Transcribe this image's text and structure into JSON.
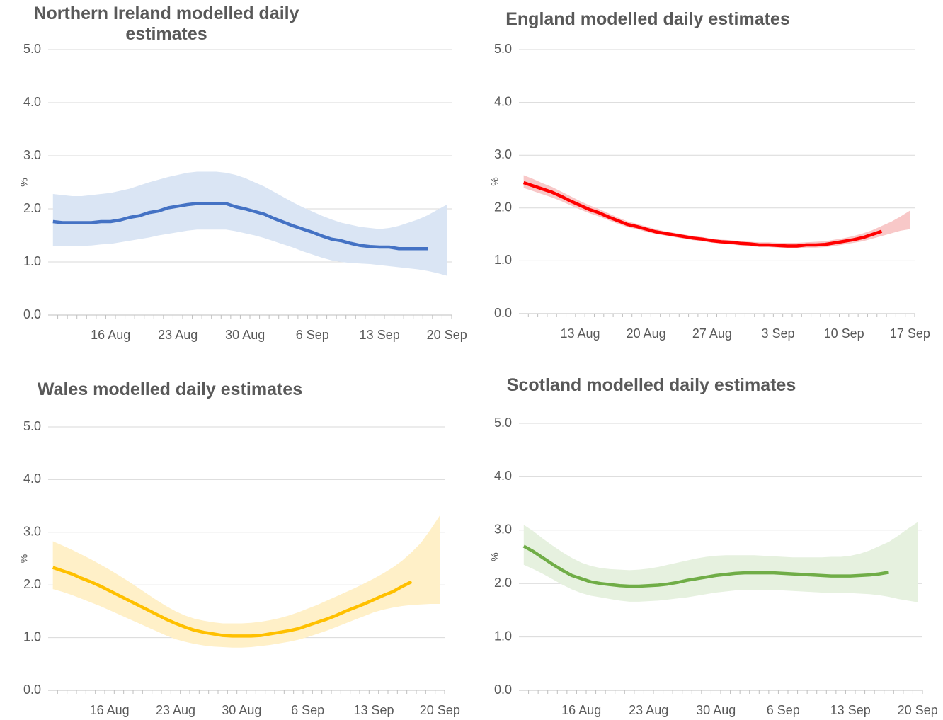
{
  "chart_data": [
    {
      "type": "line",
      "title": "Northern Ireland modelled daily estimates",
      "y_label": "%",
      "categories": [
        null,
        null,
        null,
        null,
        null,
        null,
        "16 Aug",
        null,
        null,
        null,
        null,
        null,
        null,
        "23 Aug",
        null,
        null,
        null,
        null,
        null,
        null,
        "30 Aug",
        null,
        null,
        null,
        null,
        null,
        null,
        "6 Sep",
        null,
        null,
        null,
        null,
        null,
        null,
        "13 Sep",
        null,
        null,
        null,
        null,
        null,
        null,
        "20 Sep"
      ],
      "values": [
        1.76,
        1.74,
        1.74,
        1.74,
        1.74,
        1.76,
        1.76,
        1.79,
        1.84,
        1.87,
        1.93,
        1.96,
        2.02,
        2.05,
        2.08,
        2.1,
        2.1,
        2.1,
        2.1,
        2.04,
        2.0,
        1.95,
        1.9,
        1.82,
        1.75,
        1.68,
        1.62,
        1.56,
        1.49,
        1.43,
        1.4,
        1.35,
        1.31,
        1.29,
        1.28,
        1.28,
        1.25,
        1.25,
        1.25,
        1.25,
        null,
        null
      ],
      "upper": [
        2.28,
        2.26,
        2.24,
        2.24,
        2.26,
        2.28,
        2.3,
        2.34,
        2.38,
        2.44,
        2.5,
        2.55,
        2.6,
        2.64,
        2.68,
        2.7,
        2.7,
        2.7,
        2.68,
        2.64,
        2.58,
        2.5,
        2.42,
        2.32,
        2.22,
        2.12,
        2.03,
        1.95,
        1.87,
        1.8,
        1.74,
        1.7,
        1.66,
        1.64,
        1.62,
        1.64,
        1.68,
        1.74,
        1.8,
        1.88,
        1.98,
        2.08
      ],
      "lower": [
        1.3,
        1.3,
        1.3,
        1.3,
        1.31,
        1.33,
        1.34,
        1.37,
        1.4,
        1.43,
        1.46,
        1.5,
        1.53,
        1.56,
        1.59,
        1.61,
        1.61,
        1.61,
        1.61,
        1.58,
        1.54,
        1.5,
        1.45,
        1.39,
        1.33,
        1.27,
        1.2,
        1.14,
        1.08,
        1.03,
        1.0,
        0.98,
        0.97,
        0.96,
        0.94,
        0.92,
        0.9,
        0.88,
        0.86,
        0.83,
        0.79,
        0.74
      ],
      "line_color": "#4472c4",
      "band_color": "#dae5f4",
      "ylim": [
        0,
        5
      ],
      "yticks": [
        {
          "value": 0,
          "label": "0.0"
        },
        {
          "value": 1,
          "label": "1.0"
        },
        {
          "value": 2,
          "label": "2.0"
        },
        {
          "value": 3,
          "label": "3.0"
        },
        {
          "value": 4,
          "label": "4.0"
        },
        {
          "value": 5,
          "label": "5.0"
        }
      ],
      "grid": true
    },
    {
      "type": "line",
      "title": "England modelled daily estimates",
      "y_label": "%",
      "categories": [
        null,
        null,
        null,
        null,
        null,
        null,
        "13 Aug",
        null,
        null,
        null,
        null,
        null,
        null,
        "20 Aug",
        null,
        null,
        null,
        null,
        null,
        null,
        "27 Aug",
        null,
        null,
        null,
        null,
        null,
        null,
        "3 Sep",
        null,
        null,
        null,
        null,
        null,
        null,
        "10 Sep",
        null,
        null,
        null,
        null,
        null,
        null,
        "17 Sep"
      ],
      "values": [
        2.48,
        2.42,
        2.36,
        2.3,
        2.22,
        2.13,
        2.05,
        1.97,
        1.91,
        1.83,
        1.76,
        1.69,
        1.65,
        1.6,
        1.55,
        1.52,
        1.49,
        1.46,
        1.43,
        1.41,
        1.38,
        1.36,
        1.35,
        1.33,
        1.32,
        1.3,
        1.3,
        1.29,
        1.28,
        1.28,
        1.3,
        1.3,
        1.31,
        1.34,
        1.37,
        1.4,
        1.44,
        1.5,
        1.56,
        null,
        null,
        null
      ],
      "upper": [
        2.62,
        2.55,
        2.47,
        2.4,
        2.31,
        2.22,
        2.13,
        2.05,
        1.98,
        1.9,
        1.82,
        1.75,
        1.7,
        1.65,
        1.6,
        1.56,
        1.53,
        1.5,
        1.47,
        1.45,
        1.42,
        1.4,
        1.39,
        1.37,
        1.36,
        1.35,
        1.35,
        1.34,
        1.34,
        1.34,
        1.35,
        1.36,
        1.37,
        1.4,
        1.43,
        1.47,
        1.52,
        1.58,
        1.66,
        1.74,
        1.84,
        1.95
      ],
      "lower": [
        2.38,
        2.32,
        2.26,
        2.2,
        2.13,
        2.05,
        1.97,
        1.9,
        1.84,
        1.77,
        1.7,
        1.64,
        1.6,
        1.55,
        1.51,
        1.48,
        1.45,
        1.42,
        1.39,
        1.37,
        1.34,
        1.33,
        1.31,
        1.29,
        1.28,
        1.26,
        1.26,
        1.25,
        1.24,
        1.24,
        1.25,
        1.25,
        1.26,
        1.28,
        1.31,
        1.34,
        1.37,
        1.42,
        1.47,
        1.52,
        1.57,
        1.6
      ],
      "line_color": "#ff0000",
      "band_color": "#f8c8c8",
      "ylim": [
        0,
        5
      ],
      "yticks": [
        {
          "value": 0,
          "label": "0.0"
        },
        {
          "value": 1,
          "label": "1.0"
        },
        {
          "value": 2,
          "label": "2.0"
        },
        {
          "value": 3,
          "label": "3.0"
        },
        {
          "value": 4,
          "label": "4.0"
        },
        {
          "value": 5,
          "label": "5.0"
        }
      ],
      "grid": true
    },
    {
      "type": "line",
      "title": "Wales modelled daily estimates",
      "y_label": "%",
      "categories": [
        null,
        null,
        null,
        null,
        null,
        null,
        "16 Aug",
        null,
        null,
        null,
        null,
        null,
        null,
        "23 Aug",
        null,
        null,
        null,
        null,
        null,
        null,
        "30 Aug",
        null,
        null,
        null,
        null,
        null,
        null,
        "6 Sep",
        null,
        null,
        null,
        null,
        null,
        null,
        "13 Sep",
        null,
        null,
        null,
        null,
        null,
        null,
        "20 Sep"
      ],
      "values": [
        2.33,
        2.27,
        2.21,
        2.13,
        2.06,
        1.98,
        1.89,
        1.8,
        1.71,
        1.62,
        1.53,
        1.44,
        1.35,
        1.27,
        1.2,
        1.14,
        1.1,
        1.07,
        1.04,
        1.03,
        1.03,
        1.03,
        1.04,
        1.07,
        1.1,
        1.13,
        1.17,
        1.23,
        1.29,
        1.35,
        1.42,
        1.5,
        1.57,
        1.64,
        1.72,
        1.8,
        1.87,
        1.97,
        2.06,
        null,
        null,
        null
      ],
      "upper": [
        2.83,
        2.75,
        2.67,
        2.58,
        2.49,
        2.39,
        2.29,
        2.18,
        2.07,
        1.95,
        1.83,
        1.71,
        1.6,
        1.5,
        1.42,
        1.36,
        1.32,
        1.29,
        1.27,
        1.27,
        1.27,
        1.28,
        1.3,
        1.33,
        1.37,
        1.42,
        1.48,
        1.55,
        1.62,
        1.7,
        1.78,
        1.86,
        1.94,
        2.03,
        2.12,
        2.22,
        2.33,
        2.46,
        2.62,
        2.8,
        3.05,
        3.32
      ],
      "lower": [
        1.92,
        1.87,
        1.81,
        1.74,
        1.67,
        1.6,
        1.52,
        1.44,
        1.36,
        1.28,
        1.2,
        1.12,
        1.04,
        0.97,
        0.92,
        0.88,
        0.85,
        0.83,
        0.82,
        0.81,
        0.81,
        0.82,
        0.84,
        0.86,
        0.89,
        0.92,
        0.96,
        1.01,
        1.07,
        1.13,
        1.2,
        1.27,
        1.34,
        1.41,
        1.48,
        1.53,
        1.57,
        1.6,
        1.62,
        1.63,
        1.64,
        1.64
      ],
      "line_color": "#ffc000",
      "band_color": "#fff0c8",
      "ylim": [
        0,
        5
      ],
      "yticks": [
        {
          "value": 0,
          "label": "0.0"
        },
        {
          "value": 1,
          "label": "1.0"
        },
        {
          "value": 2,
          "label": "2.0"
        },
        {
          "value": 3,
          "label": "3.0"
        },
        {
          "value": 4,
          "label": "4.0"
        },
        {
          "value": 5,
          "label": "5.0"
        }
      ],
      "grid": true
    },
    {
      "type": "line",
      "title": "Scotland modelled daily estimates",
      "y_label": "%",
      "categories": [
        null,
        null,
        null,
        null,
        null,
        null,
        "16 Aug",
        null,
        null,
        null,
        null,
        null,
        null,
        "23 Aug",
        null,
        null,
        null,
        null,
        null,
        null,
        "30 Aug",
        null,
        null,
        null,
        null,
        null,
        null,
        "6 Sep",
        null,
        null,
        null,
        null,
        null,
        null,
        "13 Sep",
        null,
        null,
        null,
        null,
        null,
        null,
        "20 Sep"
      ],
      "values": [
        2.7,
        2.6,
        2.48,
        2.36,
        2.25,
        2.15,
        2.09,
        2.03,
        2.0,
        1.98,
        1.96,
        1.95,
        1.95,
        1.96,
        1.97,
        1.99,
        2.02,
        2.06,
        2.09,
        2.12,
        2.15,
        2.17,
        2.19,
        2.2,
        2.2,
        2.2,
        2.2,
        2.19,
        2.18,
        2.17,
        2.16,
        2.15,
        2.14,
        2.14,
        2.14,
        2.15,
        2.16,
        2.18,
        2.21,
        null,
        null,
        null
      ],
      "upper": [
        3.1,
        2.98,
        2.84,
        2.71,
        2.59,
        2.48,
        2.39,
        2.33,
        2.29,
        2.27,
        2.26,
        2.25,
        2.26,
        2.28,
        2.31,
        2.35,
        2.39,
        2.43,
        2.47,
        2.5,
        2.52,
        2.53,
        2.53,
        2.53,
        2.53,
        2.52,
        2.51,
        2.5,
        2.49,
        2.49,
        2.49,
        2.49,
        2.5,
        2.5,
        2.52,
        2.56,
        2.62,
        2.7,
        2.78,
        2.9,
        3.03,
        3.15
      ],
      "lower": [
        2.35,
        2.27,
        2.18,
        2.08,
        1.98,
        1.89,
        1.82,
        1.77,
        1.74,
        1.71,
        1.68,
        1.66,
        1.66,
        1.67,
        1.68,
        1.7,
        1.72,
        1.74,
        1.77,
        1.8,
        1.83,
        1.85,
        1.87,
        1.88,
        1.88,
        1.88,
        1.88,
        1.87,
        1.86,
        1.85,
        1.84,
        1.83,
        1.82,
        1.82,
        1.82,
        1.81,
        1.8,
        1.78,
        1.75,
        1.71,
        1.68,
        1.65
      ],
      "line_color": "#70ad47",
      "band_color": "#e6f1df",
      "ylim": [
        0,
        5
      ],
      "yticks": [
        {
          "value": 0,
          "label": "0.0"
        },
        {
          "value": 1,
          "label": "1.0"
        },
        {
          "value": 2,
          "label": "2.0"
        },
        {
          "value": 3,
          "label": "3.0"
        },
        {
          "value": 4,
          "label": "4.0"
        },
        {
          "value": 5,
          "label": "5.0"
        }
      ],
      "grid": true
    }
  ]
}
